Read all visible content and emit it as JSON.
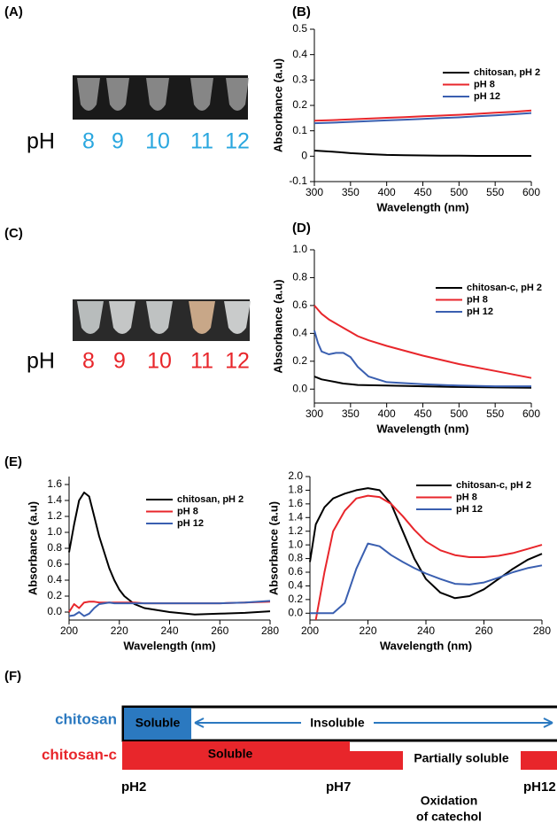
{
  "chart_data": [
    {
      "type": "line",
      "panel_label": "(B)",
      "xlabel": "Wavelength (nm)",
      "ylabel": "Absorbance (a.u)",
      "x": [
        300,
        325,
        350,
        375,
        400,
        425,
        450,
        475,
        500,
        525,
        550,
        575,
        600
      ],
      "series": [
        {
          "name": "chitosan, pH 2",
          "color": "#000000",
          "values": [
            0.022,
            0.018,
            0.012,
            0.008,
            0.005,
            0.004,
            0.003,
            0.002,
            0.002,
            0.001,
            0.001,
            0.001,
            0.001
          ]
        },
        {
          "name": "pH 8",
          "color": "#e8262b",
          "values": [
            0.14,
            0.142,
            0.145,
            0.148,
            0.151,
            0.154,
            0.157,
            0.16,
            0.163,
            0.167,
            0.171,
            0.175,
            0.18
          ]
        },
        {
          "name": "pH 12",
          "color": "#3a5fb0",
          "values": [
            0.13,
            0.132,
            0.135,
            0.138,
            0.141,
            0.144,
            0.147,
            0.15,
            0.153,
            0.157,
            0.161,
            0.165,
            0.17
          ]
        }
      ],
      "xlim": [
        300,
        600
      ],
      "xticks": [
        300,
        350,
        400,
        450,
        500,
        550,
        600
      ],
      "ylim": [
        -0.1,
        0.5
      ],
      "yticks": [
        -0.1,
        0,
        0.1,
        0.2,
        0.3,
        0.4,
        0.5
      ],
      "legend": "upper right"
    },
    {
      "type": "line",
      "panel_label": "(D)",
      "xlabel": "Wavelength (nm)",
      "ylabel": "Absorbance (a.u)",
      "x": [
        300,
        305,
        310,
        320,
        330,
        340,
        350,
        360,
        375,
        400,
        450,
        500,
        550,
        600
      ],
      "series": [
        {
          "name": "chitosan-c, pH 2",
          "color": "#000000",
          "values": [
            0.09,
            0.08,
            0.07,
            0.06,
            0.05,
            0.04,
            0.035,
            0.03,
            0.028,
            0.025,
            0.02,
            0.015,
            0.012,
            0.01
          ]
        },
        {
          "name": "pH 8",
          "color": "#e8262b",
          "values": [
            0.6,
            0.57,
            0.54,
            0.5,
            0.47,
            0.44,
            0.41,
            0.38,
            0.35,
            0.31,
            0.24,
            0.18,
            0.13,
            0.08
          ]
        },
        {
          "name": "pH 12",
          "color": "#3a5fb0",
          "values": [
            0.42,
            0.33,
            0.27,
            0.25,
            0.26,
            0.26,
            0.23,
            0.16,
            0.09,
            0.05,
            0.035,
            0.025,
            0.02,
            0.02
          ]
        }
      ],
      "xlim": [
        300,
        600
      ],
      "xticks": [
        300,
        350,
        400,
        450,
        500,
        550,
        600
      ],
      "ylim": [
        -0.1,
        1.0
      ],
      "yticks": [
        {
          "value": 0,
          "label": "0.0"
        },
        0.2,
        0.4,
        0.6,
        0.8,
        {
          "value": 1,
          "label": "1.0"
        }
      ],
      "legend": "upper right"
    },
    {
      "type": "line",
      "panel_label": "(E)",
      "xlabel": "Wavelength (nm)",
      "ylabel": "Absorbance (a.u)",
      "x": [
        200,
        202,
        204,
        206,
        208,
        210,
        212,
        214,
        216,
        218,
        220,
        222,
        226,
        230,
        240,
        250,
        260,
        270,
        280
      ],
      "series": [
        {
          "name": "chitosan, pH 2",
          "color": "#000000",
          "values": [
            0.75,
            1.1,
            1.4,
            1.5,
            1.45,
            1.2,
            0.95,
            0.75,
            0.55,
            0.4,
            0.28,
            0.2,
            0.1,
            0.05,
            0,
            -0.03,
            -0.02,
            -0.01,
            0.01
          ]
        },
        {
          "name": "pH 8",
          "color": "#e8262b",
          "values": [
            0,
            0.1,
            0.05,
            0.12,
            0.13,
            0.13,
            0.12,
            0.12,
            0.12,
            0.12,
            0.12,
            0.12,
            0.12,
            0.11,
            0.11,
            0.11,
            0.11,
            0.12,
            0.13
          ]
        },
        {
          "name": "pH 12",
          "color": "#3a5fb0",
          "values": [
            -0.05,
            -0.04,
            0,
            -0.05,
            -0.02,
            0.05,
            0.1,
            0.11,
            0.12,
            0.11,
            0.11,
            0.11,
            0.11,
            0.11,
            0.11,
            0.11,
            0.11,
            0.12,
            0.14
          ]
        }
      ],
      "xlim": [
        200,
        280
      ],
      "xticks": [
        200,
        220,
        240,
        260,
        280
      ],
      "ylim": [
        -0.1,
        1.7
      ],
      "yticks": [
        {
          "value": 0,
          "label": "0.0"
        },
        0.2,
        0.4,
        0.6,
        0.8,
        {
          "value": 1,
          "label": "1.0"
        },
        1.2,
        1.4,
        1.6
      ],
      "legend": "upper right"
    },
    {
      "type": "line",
      "xlabel": "Wavelength (nm)",
      "ylabel": "Absorbance (a.u)",
      "x": [
        200,
        202,
        205,
        208,
        212,
        216,
        220,
        224,
        228,
        232,
        236,
        240,
        245,
        250,
        255,
        260,
        265,
        270,
        275,
        280
      ],
      "series": [
        {
          "name": "chitosan-c, pH 2",
          "color": "#000000",
          "values": [
            0.75,
            1.3,
            1.55,
            1.68,
            1.75,
            1.8,
            1.83,
            1.8,
            1.6,
            1.2,
            0.8,
            0.5,
            0.3,
            0.22,
            0.25,
            0.35,
            0.5,
            0.65,
            0.78,
            0.87
          ]
        },
        {
          "name": "pH 8",
          "color": "#e8262b",
          "values": [
            null,
            -0.1,
            0.6,
            1.2,
            1.5,
            1.68,
            1.72,
            1.7,
            1.6,
            1.42,
            1.22,
            1.05,
            0.92,
            0.85,
            0.82,
            0.82,
            0.84,
            0.88,
            0.94,
            1.0
          ]
        },
        {
          "name": "pH 12",
          "color": "#3a5fb0",
          "values": [
            0,
            0,
            0,
            0,
            0.15,
            0.65,
            1.02,
            0.98,
            0.85,
            0.75,
            0.66,
            0.58,
            0.5,
            0.43,
            0.42,
            0.45,
            0.52,
            0.6,
            0.66,
            0.7
          ]
        }
      ],
      "xlim": [
        200,
        280
      ],
      "xticks": [
        200,
        220,
        240,
        260,
        280
      ],
      "ylim": [
        -0.1,
        2.0
      ],
      "yticks": [
        {
          "value": 0,
          "label": "0.0"
        },
        0.2,
        0.4,
        0.6,
        0.8,
        {
          "value": 1,
          "label": "1.0"
        },
        1.2,
        1.4,
        1.6,
        1.8,
        {
          "value": 2,
          "label": "2.0"
        }
      ],
      "legend": "upper right"
    }
  ],
  "panel_a": {
    "label": "(A)",
    "ph": "pH",
    "values": [
      "8",
      "9",
      "10",
      "11",
      "12"
    ]
  },
  "panel_c": {
    "label": "(C)",
    "ph": "pH",
    "values": [
      "8",
      "9",
      "10",
      "11",
      "12"
    ]
  },
  "panel_f": {
    "label": "(F)",
    "rows": [
      {
        "name": "chitosan",
        "states": [
          "Soluble",
          "Insoluble"
        ]
      },
      {
        "name": "chitosan-c",
        "states": [
          "Soluble",
          "Partially soluble"
        ]
      }
    ],
    "ph_marks": [
      "pH2",
      "pH7",
      "pH12"
    ],
    "note": [
      "Oxidation",
      "of catechol"
    ]
  }
}
